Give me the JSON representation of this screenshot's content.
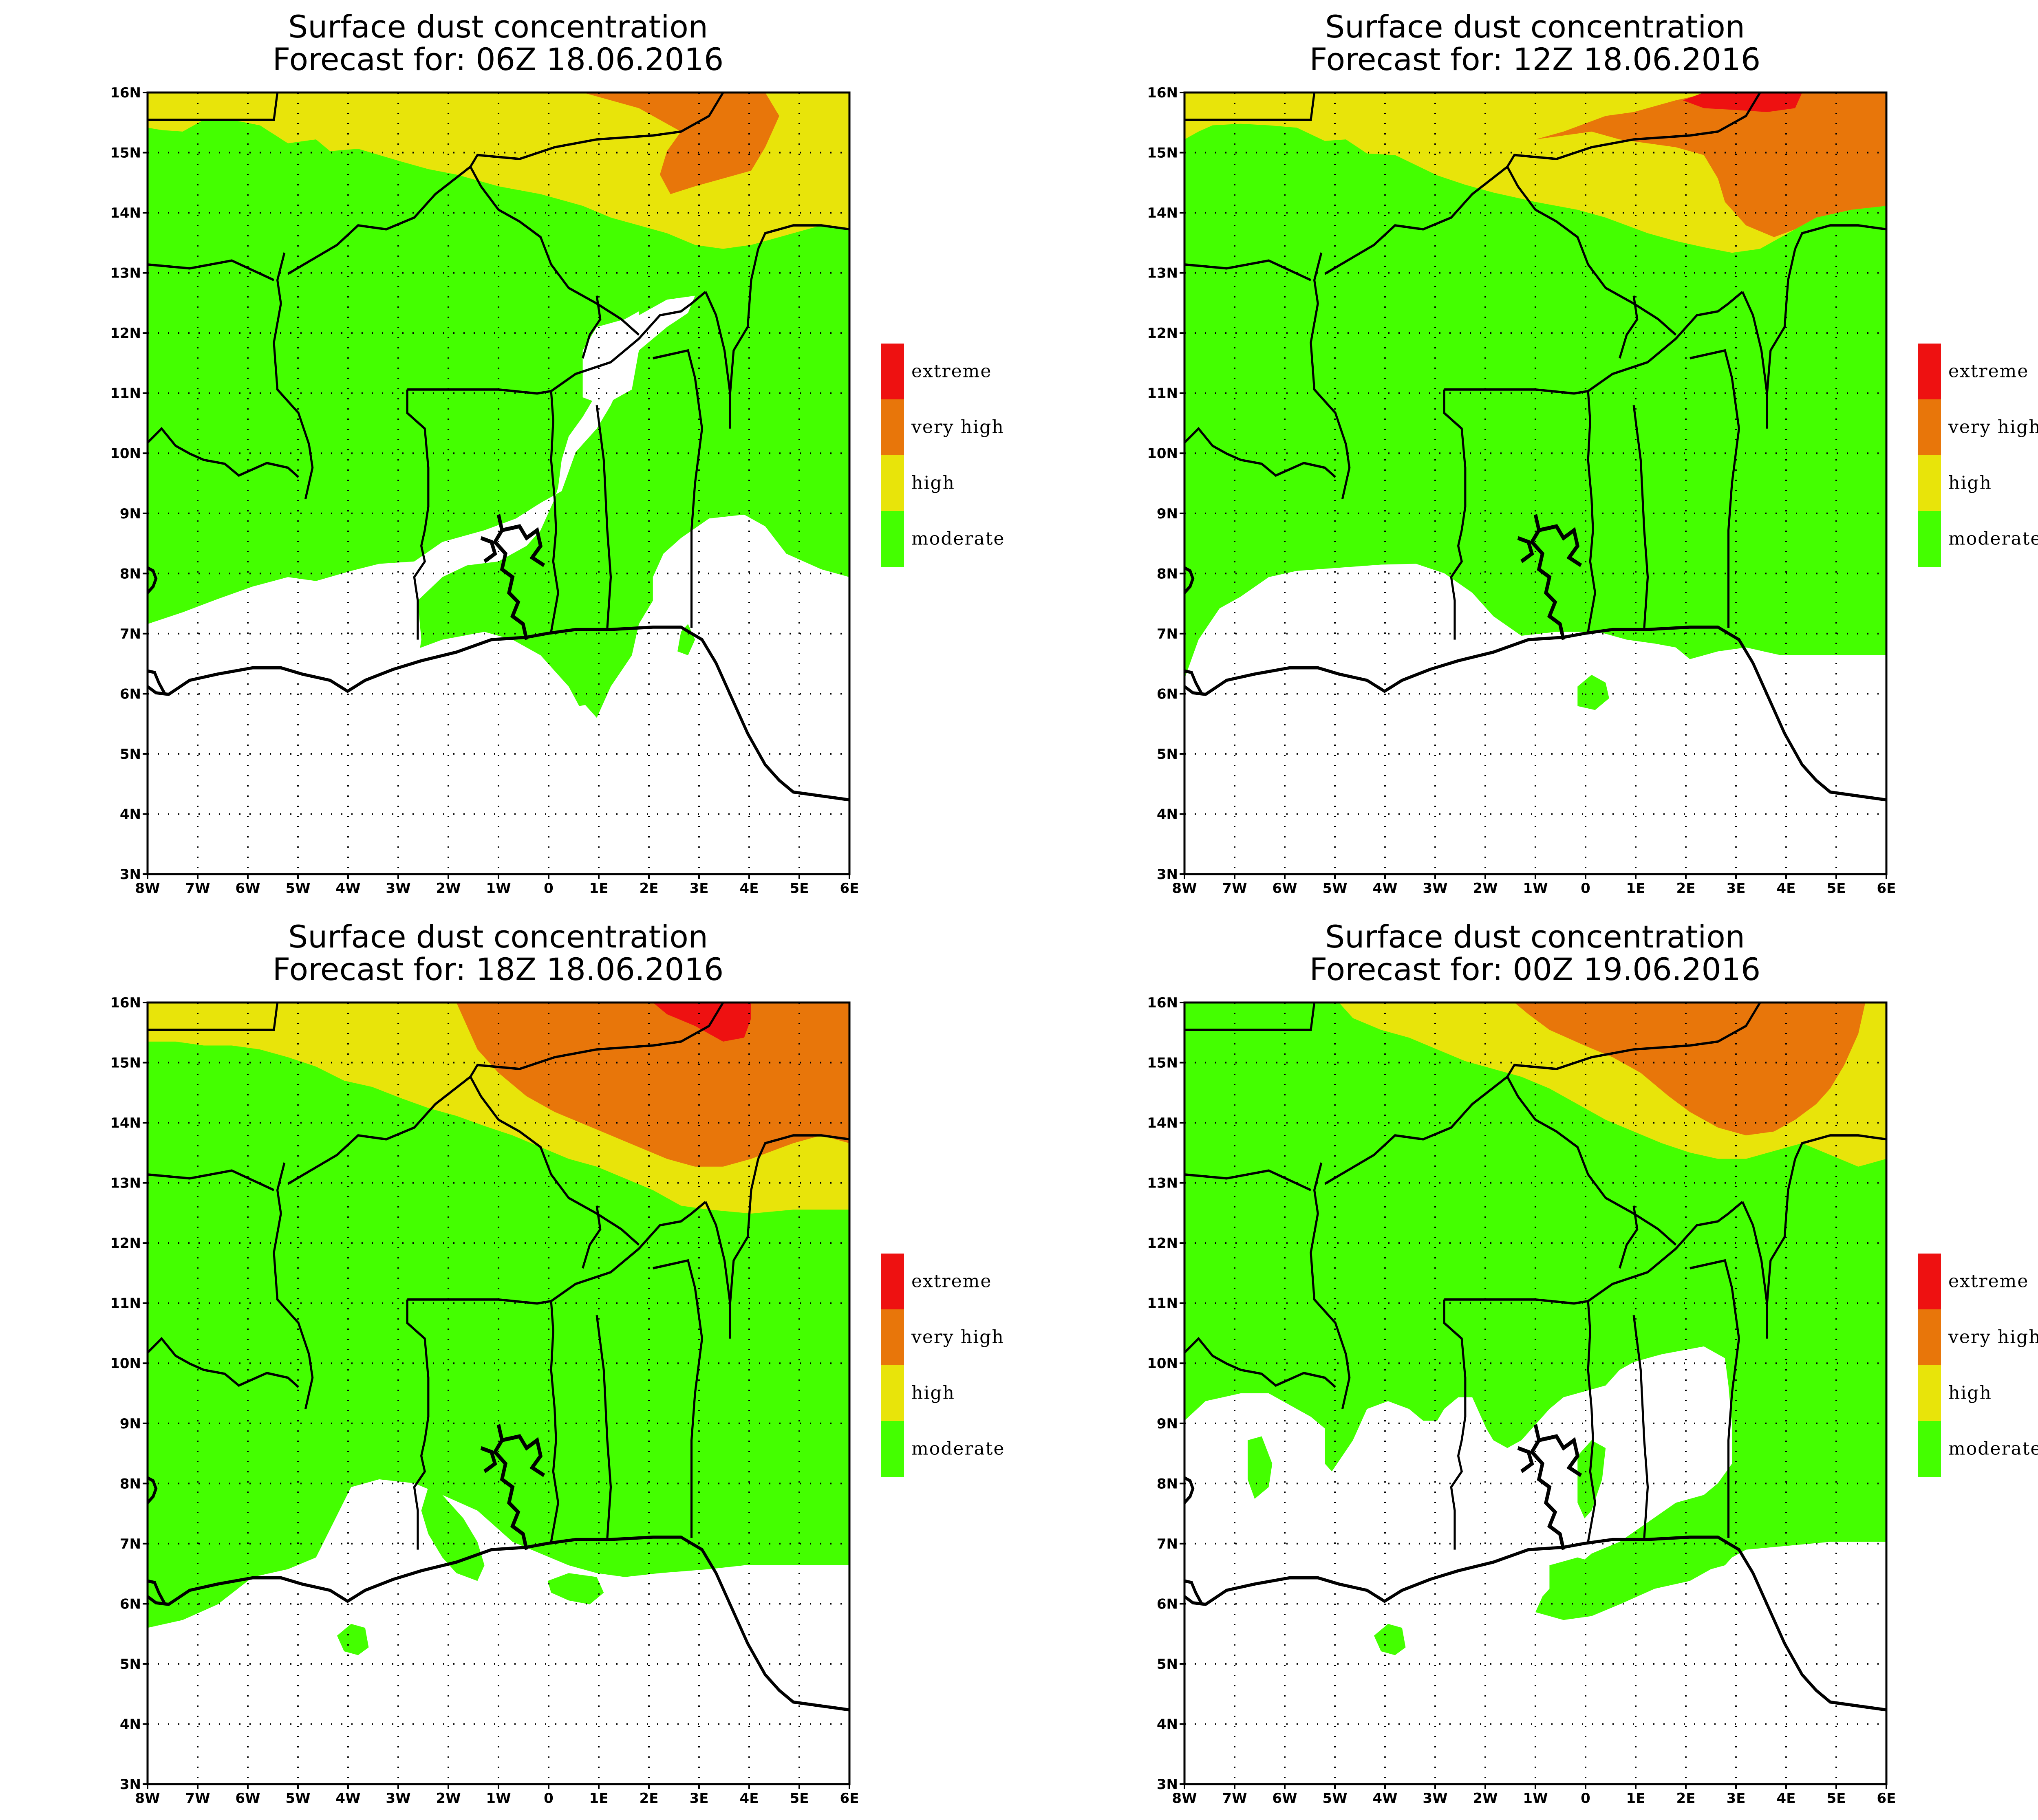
{
  "panels": [
    {
      "id": "p1",
      "title": "Surface dust concentration",
      "subtitle": "Forecast for: 06Z  18.06.2016"
    },
    {
      "id": "p2",
      "title": "Surface dust concentration",
      "subtitle": "Forecast for: 12Z  18.06.2016"
    },
    {
      "id": "p3",
      "title": "Surface dust concentration",
      "subtitle": "Forecast for: 18Z  18.06.2016"
    },
    {
      "id": "p4",
      "title": "Surface dust concentration",
      "subtitle": "Forecast for: 00Z  19.06.2016"
    }
  ],
  "axes": {
    "x_ticks": [
      "8W",
      "7W",
      "6W",
      "5W",
      "4W",
      "3W",
      "2W",
      "1W",
      "0",
      "1E",
      "2E",
      "3E",
      "4E",
      "5E",
      "6E"
    ],
    "y_ticks": [
      "16N",
      "15N",
      "14N",
      "13N",
      "12N",
      "11N",
      "10N",
      "9N",
      "8N",
      "7N",
      "6N",
      "5N",
      "4N",
      "3N"
    ],
    "lon_range": [
      -8,
      6
    ],
    "lat_range": [
      3,
      16
    ]
  },
  "legend": [
    {
      "label": "extreme",
      "color": "#ee1111"
    },
    {
      "label": "very high",
      "color": "#e8760a"
    },
    {
      "label": "high",
      "color": "#e8e40a"
    },
    {
      "label": "moderate",
      "color": "#44ff00"
    }
  ],
  "colors": {
    "none": "#ffffff"
  }
}
